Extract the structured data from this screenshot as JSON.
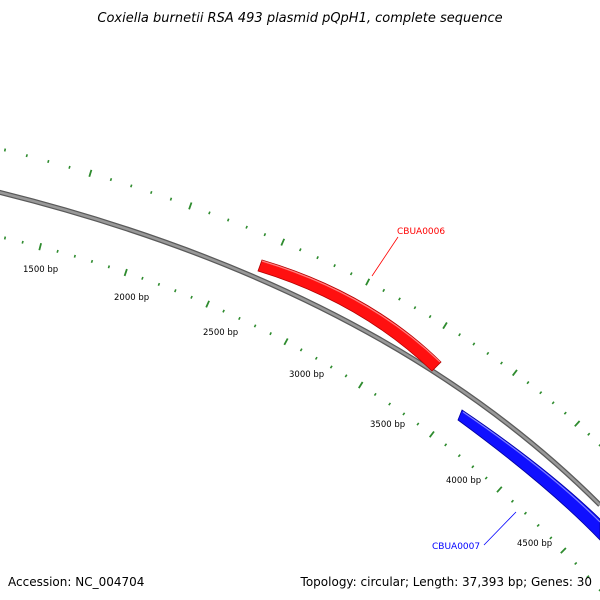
{
  "title": "Coxiella burnetii RSA 493 plasmid pQpH1, complete sequence",
  "accession": "Accession: NC_004704",
  "topology": "Topology: circular; Length: 37,393 bp; Genes: 30",
  "colors": {
    "backbone": "#808080",
    "ticks": "#2e8b2e",
    "forward_gene": "#ff0000",
    "reverse_gene": "#0000ff"
  },
  "tick_labels": [
    "1500 bp",
    "2000 bp",
    "2500 bp",
    "3000 bp",
    "3500 bp",
    "4000 bp",
    "4500 bp"
  ],
  "genes": [
    {
      "name": "CBUA0006",
      "strand": "forward",
      "color": "#ff0000"
    },
    {
      "name": "CBUA0007",
      "strand": "reverse",
      "color": "#0000ff"
    }
  ]
}
